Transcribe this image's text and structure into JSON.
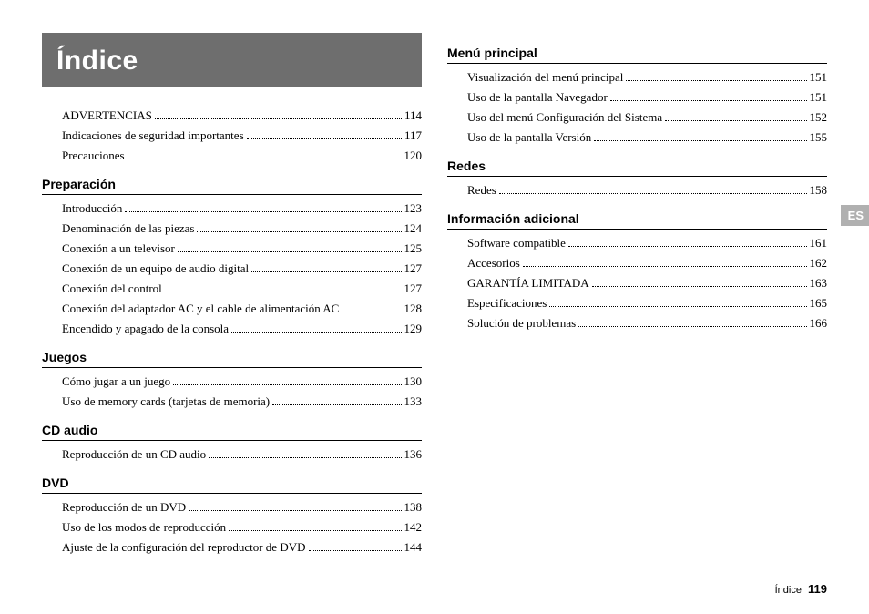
{
  "title": "Índice",
  "lang_tab": "ES",
  "footer_label": "Índice",
  "footer_page": "119",
  "left": {
    "intro_entries": [
      {
        "label": "ADVERTENCIAS",
        "page": "114"
      },
      {
        "label": "Indicaciones de seguridad importantes",
        "page": "117"
      },
      {
        "label": "Precauciones",
        "page": "120"
      }
    ],
    "sections": [
      {
        "heading": "Preparación",
        "entries": [
          {
            "label": "Introducción",
            "page": "123"
          },
          {
            "label": "Denominación de las piezas",
            "page": "124"
          },
          {
            "label": "Conexión a un televisor",
            "page": "125"
          },
          {
            "label": "Conexión de un equipo de audio digital",
            "page": "127"
          },
          {
            "label": "Conexión del control",
            "page": "127"
          },
          {
            "label": "Conexión del adaptador AC y el cable de alimentación AC",
            "page": "128"
          },
          {
            "label": "Encendido y apagado de la consola",
            "page": "129"
          }
        ]
      },
      {
        "heading": "Juegos",
        "entries": [
          {
            "label": "Cómo jugar a un juego",
            "page": "130"
          },
          {
            "label": "Uso de memory cards (tarjetas de memoria)",
            "page": "133"
          }
        ]
      },
      {
        "heading": "CD audio",
        "entries": [
          {
            "label": "Reproducción de un CD audio",
            "page": "136"
          }
        ]
      },
      {
        "heading": "DVD",
        "entries": [
          {
            "label": "Reproducción de un DVD",
            "page": "138"
          },
          {
            "label": "Uso de los modos de reproducción",
            "page": "142"
          },
          {
            "label": "Ajuste de la configuración del reproductor de DVD",
            "page": "144"
          }
        ]
      }
    ]
  },
  "right": {
    "sections": [
      {
        "heading": "Menú principal",
        "entries": [
          {
            "label": "Visualización del menú principal",
            "page": "151"
          },
          {
            "label": "Uso de la pantalla Navegador",
            "page": "151"
          },
          {
            "label": "Uso del menú Configuración del Sistema",
            "page": "152"
          },
          {
            "label": "Uso de la pantalla Versión",
            "page": "155"
          }
        ]
      },
      {
        "heading": "Redes",
        "entries": [
          {
            "label": "Redes",
            "page": "158"
          }
        ]
      },
      {
        "heading": "Información adicional",
        "entries": [
          {
            "label": "Software compatible",
            "page": "161"
          },
          {
            "label": "Accesorios",
            "page": "162"
          },
          {
            "label": "GARANTÍA LIMITADA",
            "page": "163"
          },
          {
            "label": "Especificaciones",
            "page": "165"
          },
          {
            "label": "Solución de problemas",
            "page": "166"
          }
        ]
      }
    ]
  }
}
